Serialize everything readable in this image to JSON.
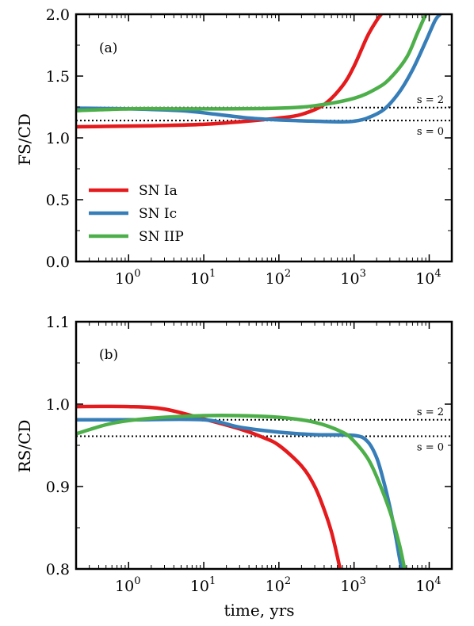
{
  "chart_data": [
    {
      "type": "line",
      "panel_label": "(a)",
      "xlabel": "",
      "ylabel": "FS/CD",
      "x_scale": "log",
      "xlim": [
        0.2,
        20000
      ],
      "ylim": [
        0.0,
        2.0
      ],
      "x_ticks": [
        {
          "base": "10",
          "exp": "0",
          "value": 1
        },
        {
          "base": "10",
          "exp": "1",
          "value": 10
        },
        {
          "base": "10",
          "exp": "2",
          "value": 100
        },
        {
          "base": "10",
          "exp": "3",
          "value": 1000
        },
        {
          "base": "10",
          "exp": "4",
          "value": 10000
        }
      ],
      "y_ticks": [
        {
          "label": "0.0",
          "value": 0.0
        },
        {
          "label": "0.5",
          "value": 0.5
        },
        {
          "label": "1.0",
          "value": 1.0
        },
        {
          "label": "1.5",
          "value": 1.5
        },
        {
          "label": "2.0",
          "value": 2.0
        }
      ],
      "legend_position": "left",
      "reference_lines": [
        {
          "label": "s = 2",
          "value": 1.245
        },
        {
          "label": "s = 0",
          "value": 1.14
        }
      ],
      "series": [
        {
          "name": "SN Ia",
          "color": "#e41a1c",
          "x": [
            0.2,
            1,
            3,
            10,
            30,
            100,
            200,
            400,
            700,
            1000,
            1500,
            2000,
            2300
          ],
          "y": [
            1.09,
            1.095,
            1.1,
            1.11,
            1.13,
            1.16,
            1.19,
            1.27,
            1.42,
            1.58,
            1.82,
            1.95,
            2.0
          ]
        },
        {
          "name": "SN Ic",
          "color": "#377eb8",
          "x": [
            0.2,
            1,
            5,
            15,
            40,
            100,
            300,
            700,
            1000,
            1500,
            2500,
            4000,
            6000,
            9000,
            12000,
            14000
          ],
          "y": [
            1.24,
            1.235,
            1.22,
            1.19,
            1.16,
            1.145,
            1.135,
            1.13,
            1.135,
            1.16,
            1.23,
            1.37,
            1.55,
            1.78,
            1.95,
            2.0
          ]
        },
        {
          "name": "SN IIP",
          "color": "#4daf4a",
          "x": [
            0.2,
            1,
            5,
            20,
            100,
            300,
            1000,
            2000,
            3000,
            5000,
            7000,
            9000
          ],
          "y": [
            1.22,
            1.235,
            1.235,
            1.235,
            1.24,
            1.26,
            1.32,
            1.4,
            1.48,
            1.65,
            1.85,
            2.0
          ]
        }
      ]
    },
    {
      "type": "line",
      "panel_label": "(b)",
      "xlabel": "time, yrs",
      "ylabel": "RS/CD",
      "x_scale": "log",
      "xlim": [
        0.2,
        20000
      ],
      "ylim": [
        0.8,
        1.1
      ],
      "x_ticks": [
        {
          "base": "10",
          "exp": "0",
          "value": 1
        },
        {
          "base": "10",
          "exp": "1",
          "value": 10
        },
        {
          "base": "10",
          "exp": "2",
          "value": 100
        },
        {
          "base": "10",
          "exp": "3",
          "value": 1000
        },
        {
          "base": "10",
          "exp": "4",
          "value": 10000
        }
      ],
      "y_ticks": [
        {
          "label": "0.8",
          "value": 0.8
        },
        {
          "label": "0.9",
          "value": 0.9
        },
        {
          "label": "1.0",
          "value": 1.0
        },
        {
          "label": "1.1",
          "value": 1.1
        }
      ],
      "reference_lines": [
        {
          "label": "s = 2",
          "value": 0.981
        },
        {
          "label": "s = 0",
          "value": 0.961
        }
      ],
      "series": [
        {
          "name": "SN Ia",
          "color": "#e41a1c",
          "x": [
            0.2,
            1,
            3,
            10,
            30,
            60,
            100,
            200,
            300,
            400,
            500,
            600,
            650
          ],
          "y": [
            0.997,
            0.997,
            0.994,
            0.982,
            0.97,
            0.96,
            0.95,
            0.925,
            0.9,
            0.872,
            0.845,
            0.815,
            0.8
          ]
        },
        {
          "name": "SN Ic",
          "color": "#377eb8",
          "x": [
            0.2,
            1,
            10,
            30,
            100,
            300,
            1000,
            1500,
            2000,
            2500,
            3000,
            3500,
            4000,
            4300
          ],
          "y": [
            0.981,
            0.981,
            0.981,
            0.972,
            0.966,
            0.963,
            0.962,
            0.955,
            0.935,
            0.905,
            0.875,
            0.845,
            0.815,
            0.8
          ]
        },
        {
          "name": "SN IIP",
          "color": "#4daf4a",
          "x": [
            0.2,
            0.5,
            1,
            3,
            10,
            30,
            100,
            300,
            700,
            1000,
            1500,
            2000,
            3000,
            4000,
            4700
          ],
          "y": [
            0.964,
            0.975,
            0.98,
            0.984,
            0.986,
            0.986,
            0.984,
            0.978,
            0.966,
            0.955,
            0.935,
            0.912,
            0.87,
            0.83,
            0.8
          ]
        }
      ]
    }
  ]
}
